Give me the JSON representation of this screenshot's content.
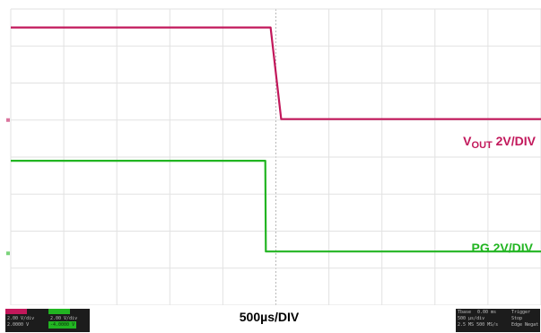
{
  "chart_data": {
    "type": "line",
    "title": "",
    "timebase_label": "500µs/DIV",
    "x_unit": "µs",
    "x_per_division": 500,
    "divisions_x": 10,
    "divisions_y": 8,
    "grid": true,
    "series": [
      {
        "name": "VOUT 2V/DIV",
        "name_main": "V",
        "name_sub": "OUT",
        "name_rest": " 2V/DIV",
        "color": "#c2185b",
        "volts_per_div": 2,
        "ground_div": 5.0,
        "points": [
          {
            "t": 0,
            "v": 5.0
          },
          {
            "t": 2450,
            "v": 5.0
          },
          {
            "t": 2550,
            "v": 0.05
          },
          {
            "t": 5000,
            "v": 0.05
          }
        ]
      },
      {
        "name": "PG 2V/DIV",
        "color": "#22b522",
        "volts_per_div": 2,
        "ground_div": 1.4,
        "points": [
          {
            "t": 0,
            "v": 5.0
          },
          {
            "t": 2400,
            "v": 5.0
          },
          {
            "t": 2405,
            "v": 0.1
          },
          {
            "t": 5000,
            "v": 0.1
          }
        ]
      }
    ]
  },
  "status_bar": {
    "left_badge": {
      "ch1_scale": "2.00 V/div",
      "ch1_offset": "2.0000 V",
      "ch2_scale": "2.00 V/div",
      "ch2_offset": "-4.0000 V"
    },
    "right_badge": {
      "timebase_label": "Tbase",
      "timebase_pos": "0.00 ms",
      "timebase_scale": "500 µs/div",
      "sample_rate": "2.5 MS  500 MS/s",
      "trigger_label": "Trigger",
      "trigger_mode": "Stop",
      "trigger_edge": "Edge  Negat"
    }
  }
}
